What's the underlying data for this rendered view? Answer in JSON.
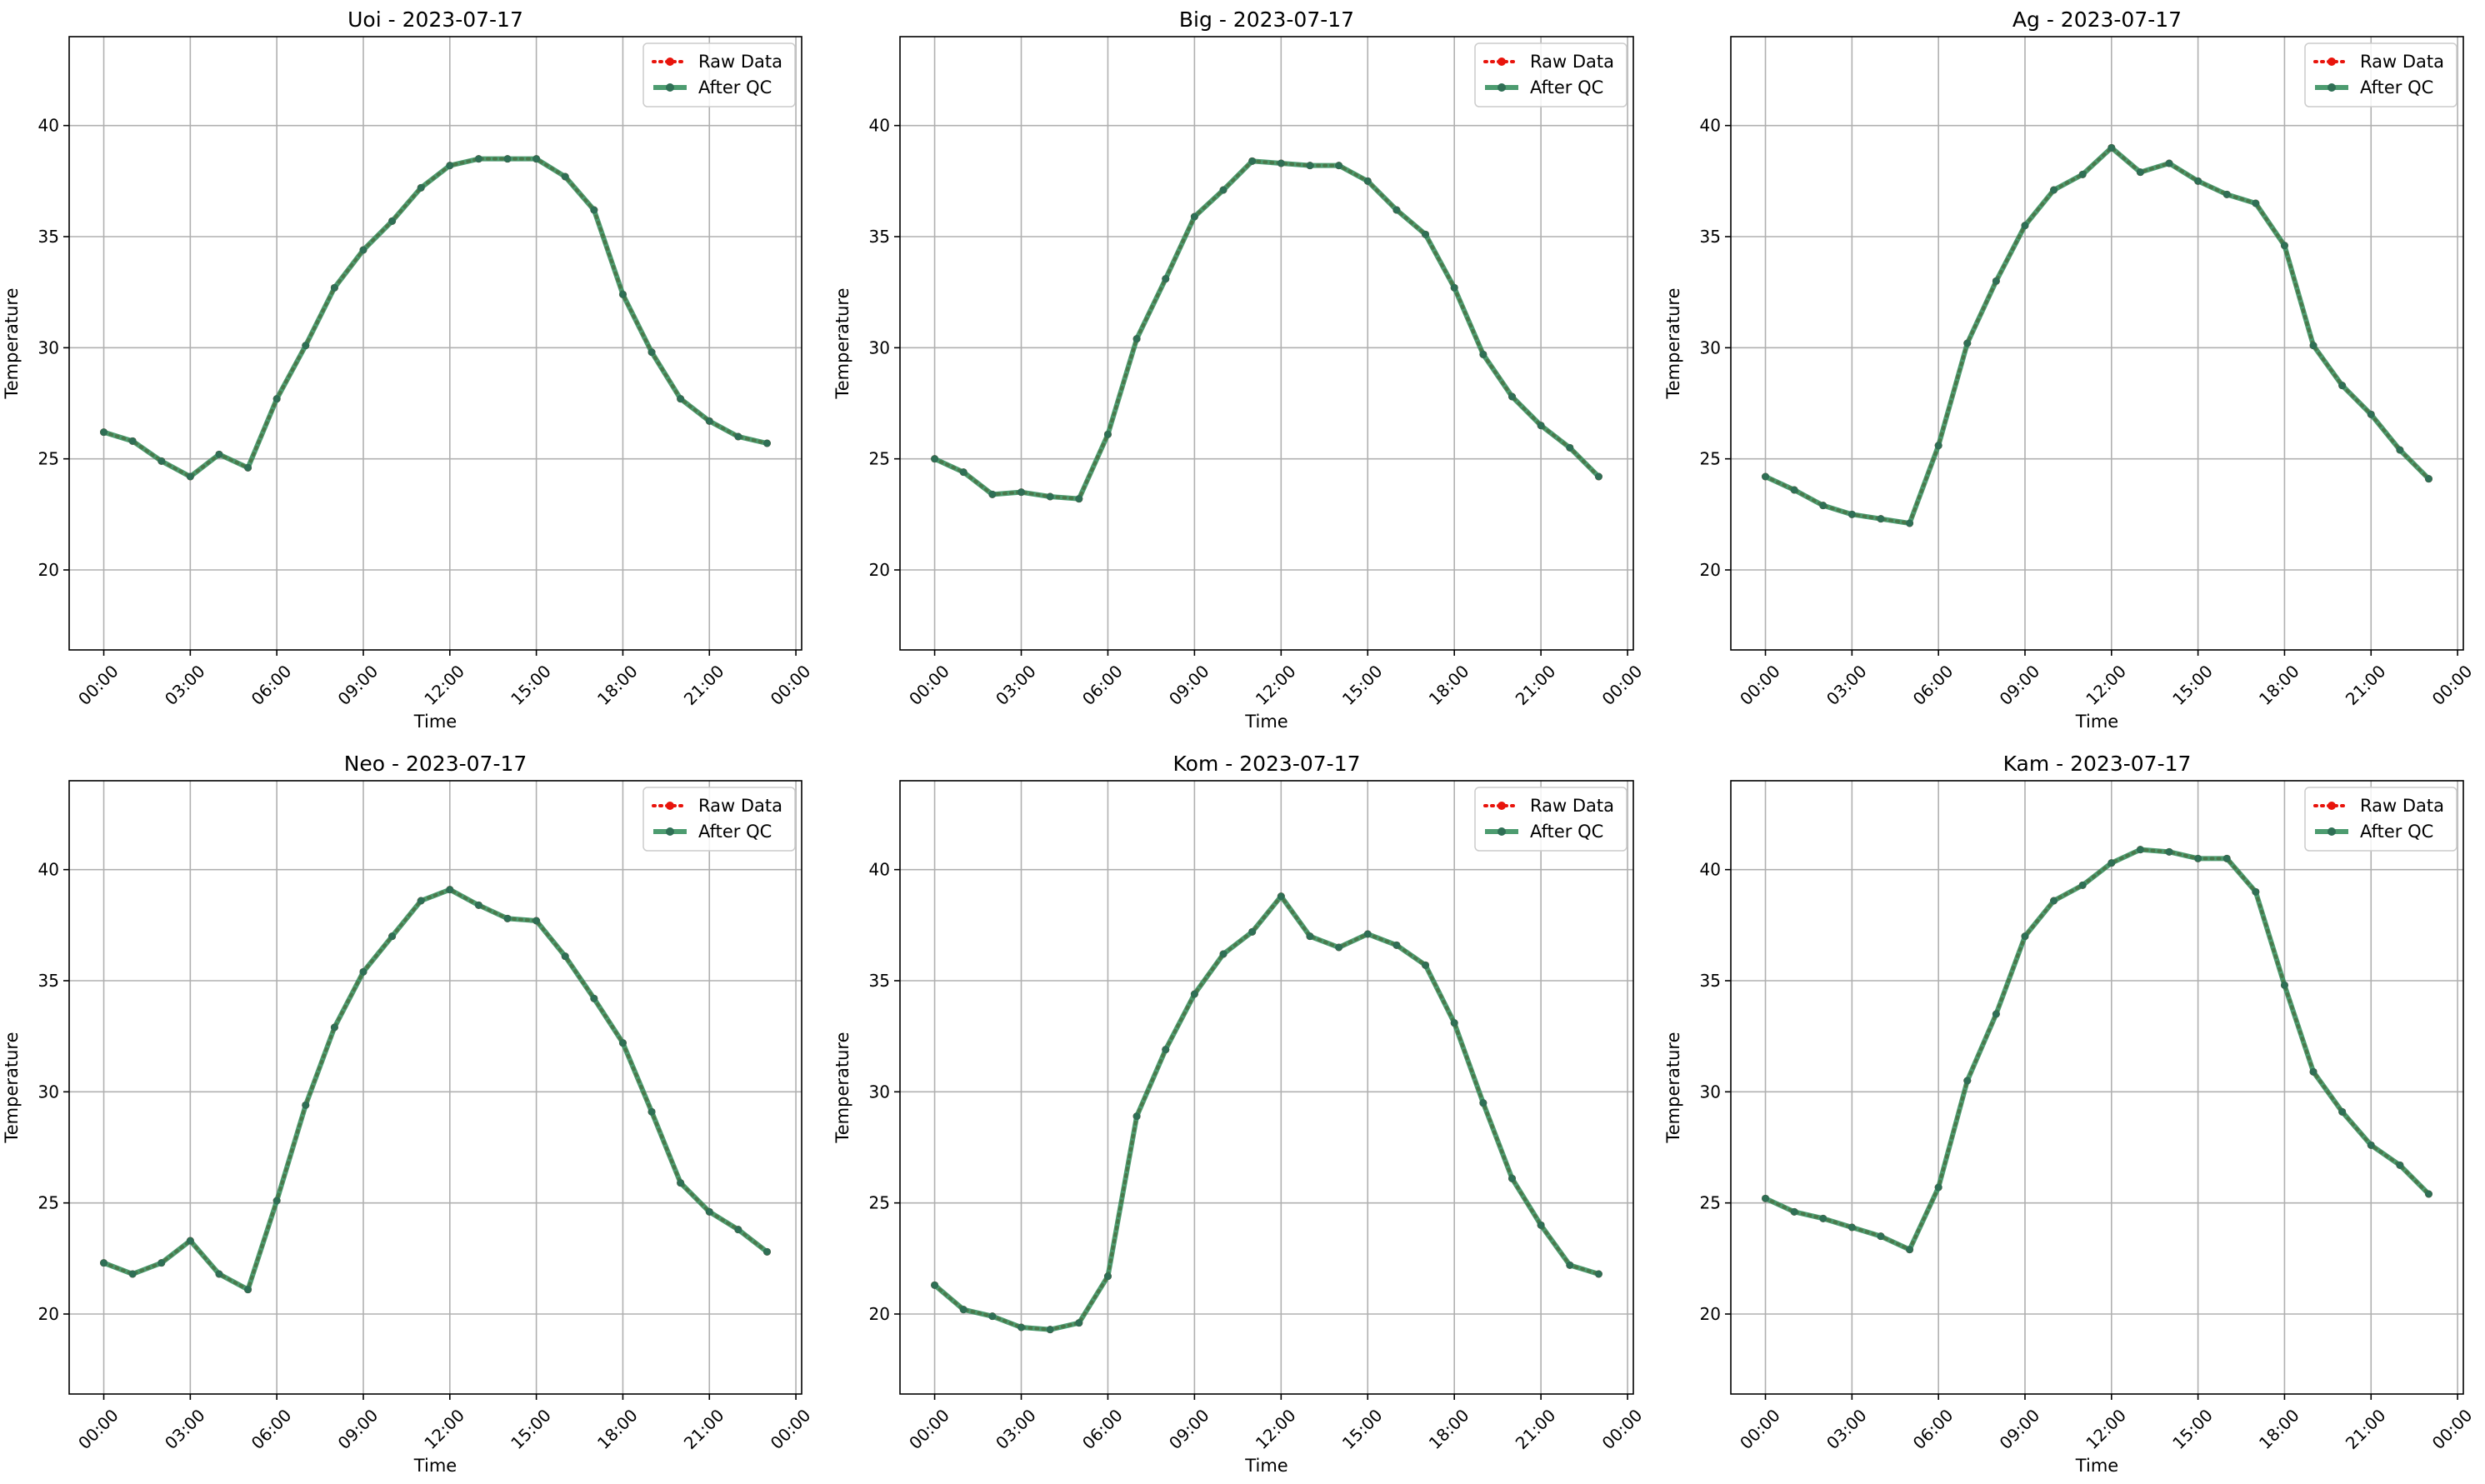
{
  "figure": {
    "colors": {
      "raw": "#e8140c",
      "qc": "#2e8b57",
      "qc_marker": "#2f6f55",
      "grid": "#b0b0b0"
    }
  },
  "chart_data": [
    {
      "type": "line",
      "title": "Uoi - 2023-07-17",
      "xlabel": "Time",
      "ylabel": "Temperature",
      "x_ticks": [
        "00:00",
        "03:00",
        "06:00",
        "09:00",
        "12:00",
        "15:00",
        "18:00",
        "21:00",
        "00:00"
      ],
      "y_ticks": [
        20,
        25,
        30,
        35,
        40
      ],
      "xlim_hours": [
        -1.2,
        24.2
      ],
      "ylim": [
        16.4,
        44.0
      ],
      "grid": true,
      "legend_position": "top-right",
      "x_hours": [
        0,
        1,
        2,
        3,
        4,
        5,
        6,
        7,
        8,
        9,
        10,
        11,
        12,
        13,
        14,
        15,
        16,
        17,
        18,
        19,
        20,
        21,
        22,
        23
      ],
      "series": [
        {
          "name": "Raw Data",
          "style": "dotted",
          "values": [
            26.2,
            25.8,
            24.9,
            24.2,
            25.2,
            24.6,
            27.7,
            30.1,
            32.7,
            34.4,
            35.7,
            37.2,
            38.2,
            38.5,
            38.5,
            38.5,
            37.7,
            36.2,
            32.4,
            29.8,
            27.7,
            26.7,
            26.0,
            25.7
          ]
        },
        {
          "name": "After QC",
          "style": "solid",
          "values": [
            26.2,
            25.8,
            24.9,
            24.2,
            25.2,
            24.6,
            27.7,
            30.1,
            32.7,
            34.4,
            35.7,
            37.2,
            38.2,
            38.5,
            38.5,
            38.5,
            37.7,
            36.2,
            32.4,
            29.8,
            27.7,
            26.7,
            26.0,
            25.7
          ]
        }
      ]
    },
    {
      "type": "line",
      "title": "Big - 2023-07-17",
      "xlabel": "Time",
      "ylabel": "Temperature",
      "x_ticks": [
        "00:00",
        "03:00",
        "06:00",
        "09:00",
        "12:00",
        "15:00",
        "18:00",
        "21:00",
        "00:00"
      ],
      "y_ticks": [
        20,
        25,
        30,
        35,
        40
      ],
      "xlim_hours": [
        -1.2,
        24.2
      ],
      "ylim": [
        16.4,
        44.0
      ],
      "grid": true,
      "legend_position": "top-right",
      "x_hours": [
        0,
        1,
        2,
        3,
        4,
        5,
        6,
        7,
        8,
        9,
        10,
        11,
        12,
        13,
        14,
        15,
        16,
        17,
        18,
        19,
        20,
        21,
        22,
        23
      ],
      "series": [
        {
          "name": "Raw Data",
          "style": "dotted",
          "values": [
            25.0,
            24.4,
            23.4,
            23.5,
            23.3,
            23.2,
            26.1,
            30.4,
            33.1,
            35.9,
            37.1,
            38.4,
            38.3,
            38.2,
            38.2,
            37.5,
            36.2,
            35.1,
            32.7,
            29.7,
            27.8,
            26.5,
            25.5,
            24.2
          ]
        },
        {
          "name": "After QC",
          "style": "solid",
          "values": [
            25.0,
            24.4,
            23.4,
            23.5,
            23.3,
            23.2,
            26.1,
            30.4,
            33.1,
            35.9,
            37.1,
            38.4,
            38.3,
            38.2,
            38.2,
            37.5,
            36.2,
            35.1,
            32.7,
            29.7,
            27.8,
            26.5,
            25.5,
            24.2
          ]
        }
      ]
    },
    {
      "type": "line",
      "title": "Ag - 2023-07-17",
      "xlabel": "Time",
      "ylabel": "Temperature",
      "x_ticks": [
        "00:00",
        "03:00",
        "06:00",
        "09:00",
        "12:00",
        "15:00",
        "18:00",
        "21:00",
        "00:00"
      ],
      "y_ticks": [
        20,
        25,
        30,
        35,
        40
      ],
      "xlim_hours": [
        -1.2,
        24.2
      ],
      "ylim": [
        16.4,
        44.0
      ],
      "grid": true,
      "legend_position": "top-right",
      "x_hours": [
        0,
        1,
        2,
        3,
        4,
        5,
        6,
        7,
        8,
        9,
        10,
        11,
        12,
        13,
        14,
        15,
        16,
        17,
        18,
        19,
        20,
        21,
        22,
        23
      ],
      "series": [
        {
          "name": "Raw Data",
          "style": "dotted",
          "values": [
            24.2,
            23.6,
            22.9,
            22.5,
            22.3,
            22.1,
            25.6,
            30.2,
            33.0,
            35.5,
            37.1,
            37.8,
            39.0,
            37.9,
            38.3,
            37.5,
            36.9,
            36.5,
            34.6,
            30.1,
            28.3,
            27.0,
            25.4,
            24.1
          ]
        },
        {
          "name": "After QC",
          "style": "solid",
          "values": [
            24.2,
            23.6,
            22.9,
            22.5,
            22.3,
            22.1,
            25.6,
            30.2,
            33.0,
            35.5,
            37.1,
            37.8,
            39.0,
            37.9,
            38.3,
            37.5,
            36.9,
            36.5,
            34.6,
            30.1,
            28.3,
            27.0,
            25.4,
            24.1
          ]
        }
      ]
    },
    {
      "type": "line",
      "title": "Neo - 2023-07-17",
      "xlabel": "Time",
      "ylabel": "Temperature",
      "x_ticks": [
        "00:00",
        "03:00",
        "06:00",
        "09:00",
        "12:00",
        "15:00",
        "18:00",
        "21:00",
        "00:00"
      ],
      "y_ticks": [
        20,
        25,
        30,
        35,
        40
      ],
      "xlim_hours": [
        -1.2,
        24.2
      ],
      "ylim": [
        16.4,
        44.0
      ],
      "grid": true,
      "legend_position": "top-right",
      "x_hours": [
        0,
        1,
        2,
        3,
        4,
        5,
        6,
        7,
        8,
        9,
        10,
        11,
        12,
        13,
        14,
        15,
        16,
        17,
        18,
        19,
        20,
        21,
        22,
        23
      ],
      "series": [
        {
          "name": "Raw Data",
          "style": "dotted",
          "values": [
            22.3,
            21.8,
            22.3,
            23.3,
            21.8,
            21.1,
            25.1,
            29.4,
            32.9,
            35.4,
            37.0,
            38.6,
            39.1,
            38.4,
            37.8,
            37.7,
            36.1,
            34.2,
            32.2,
            29.1,
            25.9,
            24.6,
            23.8,
            22.8
          ]
        },
        {
          "name": "After QC",
          "style": "solid",
          "values": [
            22.3,
            21.8,
            22.3,
            23.3,
            21.8,
            21.1,
            25.1,
            29.4,
            32.9,
            35.4,
            37.0,
            38.6,
            39.1,
            38.4,
            37.8,
            37.7,
            36.1,
            34.2,
            32.2,
            29.1,
            25.9,
            24.6,
            23.8,
            22.8
          ]
        }
      ]
    },
    {
      "type": "line",
      "title": "Kom - 2023-07-17",
      "xlabel": "Time",
      "ylabel": "Temperature",
      "x_ticks": [
        "00:00",
        "03:00",
        "06:00",
        "09:00",
        "12:00",
        "15:00",
        "18:00",
        "21:00",
        "00:00"
      ],
      "y_ticks": [
        20,
        25,
        30,
        35,
        40
      ],
      "xlim_hours": [
        -1.2,
        24.2
      ],
      "ylim": [
        16.4,
        44.0
      ],
      "grid": true,
      "legend_position": "top-right",
      "x_hours": [
        0,
        1,
        2,
        3,
        4,
        5,
        6,
        7,
        8,
        9,
        10,
        11,
        12,
        13,
        14,
        15,
        16,
        17,
        18,
        19,
        20,
        21,
        22,
        23
      ],
      "series": [
        {
          "name": "Raw Data",
          "style": "dotted",
          "values": [
            21.3,
            20.2,
            19.9,
            19.4,
            19.3,
            19.6,
            21.7,
            28.9,
            31.9,
            34.4,
            36.2,
            37.2,
            38.8,
            37.0,
            36.5,
            37.1,
            36.6,
            35.7,
            33.1,
            29.5,
            26.1,
            24.0,
            22.2,
            21.8
          ]
        },
        {
          "name": "After QC",
          "style": "solid",
          "values": [
            21.3,
            20.2,
            19.9,
            19.4,
            19.3,
            19.6,
            21.7,
            28.9,
            31.9,
            34.4,
            36.2,
            37.2,
            38.8,
            37.0,
            36.5,
            37.1,
            36.6,
            35.7,
            33.1,
            29.5,
            26.1,
            24.0,
            22.2,
            21.8
          ]
        }
      ]
    },
    {
      "type": "line",
      "title": "Kam - 2023-07-17",
      "xlabel": "Time",
      "ylabel": "Temperature",
      "x_ticks": [
        "00:00",
        "03:00",
        "06:00",
        "09:00",
        "12:00",
        "15:00",
        "18:00",
        "21:00",
        "00:00"
      ],
      "y_ticks": [
        20,
        25,
        30,
        35,
        40
      ],
      "xlim_hours": [
        -1.2,
        24.2
      ],
      "ylim": [
        16.4,
        44.0
      ],
      "grid": true,
      "legend_position": "top-right",
      "x_hours": [
        0,
        1,
        2,
        3,
        4,
        5,
        6,
        7,
        8,
        9,
        10,
        11,
        12,
        13,
        14,
        15,
        16,
        17,
        18,
        19,
        20,
        21,
        22,
        23
      ],
      "series": [
        {
          "name": "Raw Data",
          "style": "dotted",
          "values": [
            25.2,
            24.6,
            24.3,
            23.9,
            23.5,
            22.9,
            25.7,
            30.5,
            33.5,
            37.0,
            38.6,
            39.3,
            40.3,
            40.9,
            40.8,
            40.5,
            40.5,
            39.0,
            34.8,
            30.9,
            29.1,
            27.6,
            26.7,
            25.4
          ]
        },
        {
          "name": "After QC",
          "style": "solid",
          "values": [
            25.2,
            24.6,
            24.3,
            23.9,
            23.5,
            22.9,
            25.7,
            30.5,
            33.5,
            37.0,
            38.6,
            39.3,
            40.3,
            40.9,
            40.8,
            40.5,
            40.5,
            39.0,
            34.8,
            30.9,
            29.1,
            27.6,
            26.7,
            25.4
          ]
        }
      ]
    }
  ]
}
